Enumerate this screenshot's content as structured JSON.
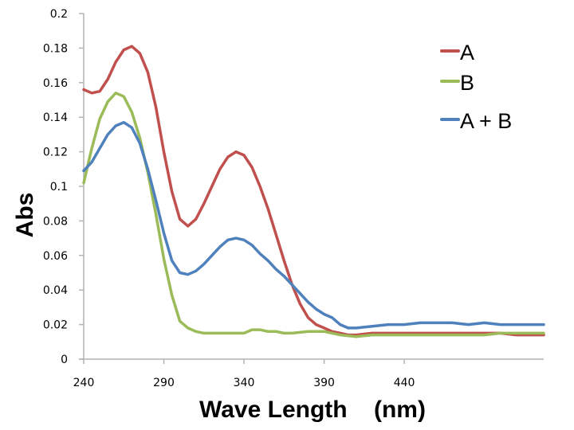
{
  "chart_data": {
    "type": "line",
    "title": "",
    "xlabel": "Wave Length    (nm)",
    "ylabel": "Abs",
    "xlim": [
      240,
      527
    ],
    "ylim": [
      0,
      0.2
    ],
    "x_ticks": [
      240,
      290,
      340,
      390,
      440
    ],
    "x_tick_labels": [
      "240",
      "290",
      "340",
      "390",
      "440"
    ],
    "y_ticks": [
      0,
      0.02,
      0.04,
      0.06,
      0.08,
      0.1,
      0.12,
      0.14,
      0.16,
      0.18,
      0.2
    ],
    "y_tick_labels": [
      "0",
      "0.02",
      "0.04",
      "0.06",
      "0.08",
      "0.1",
      "0.12",
      "0.14",
      "0.16",
      "0.18",
      "0.2"
    ],
    "grid": false,
    "legend_position": "top-right",
    "series": [
      {
        "name": "A",
        "color": "#c0504d",
        "x": [
          240,
          245,
          250,
          255,
          260,
          265,
          270,
          275,
          280,
          285,
          290,
          295,
          300,
          305,
          310,
          315,
          320,
          325,
          330,
          335,
          340,
          345,
          350,
          355,
          360,
          365,
          370,
          375,
          380,
          385,
          390,
          395,
          400,
          405,
          410,
          420,
          430,
          440,
          450,
          460,
          470,
          480,
          490,
          500,
          510,
          520,
          527
        ],
        "y": [
          0.156,
          0.154,
          0.155,
          0.162,
          0.172,
          0.179,
          0.181,
          0.177,
          0.166,
          0.146,
          0.12,
          0.097,
          0.081,
          0.077,
          0.081,
          0.09,
          0.1,
          0.11,
          0.117,
          0.12,
          0.118,
          0.111,
          0.1,
          0.087,
          0.072,
          0.057,
          0.043,
          0.032,
          0.024,
          0.02,
          0.018,
          0.016,
          0.015,
          0.014,
          0.014,
          0.015,
          0.015,
          0.015,
          0.015,
          0.015,
          0.015,
          0.015,
          0.015,
          0.015,
          0.014,
          0.014,
          0.014
        ]
      },
      {
        "name": "B",
        "color": "#9bbb59",
        "x": [
          240,
          245,
          250,
          255,
          260,
          265,
          270,
          275,
          280,
          285,
          290,
          295,
          300,
          305,
          310,
          315,
          320,
          325,
          330,
          335,
          340,
          345,
          350,
          355,
          360,
          365,
          370,
          380,
          390,
          400,
          410,
          420,
          430,
          440,
          450,
          460,
          470,
          480,
          490,
          500,
          510,
          520,
          527
        ],
        "y": [
          0.102,
          0.122,
          0.139,
          0.149,
          0.154,
          0.152,
          0.143,
          0.128,
          0.108,
          0.084,
          0.058,
          0.037,
          0.022,
          0.018,
          0.016,
          0.015,
          0.015,
          0.015,
          0.015,
          0.015,
          0.015,
          0.017,
          0.017,
          0.016,
          0.016,
          0.015,
          0.015,
          0.016,
          0.016,
          0.014,
          0.013,
          0.014,
          0.014,
          0.014,
          0.014,
          0.014,
          0.014,
          0.014,
          0.014,
          0.015,
          0.015,
          0.015,
          0.015
        ]
      },
      {
        "name": "A + B",
        "color": "#4f81bd",
        "x": [
          240,
          245,
          250,
          255,
          260,
          265,
          270,
          275,
          280,
          285,
          290,
          295,
          300,
          305,
          310,
          315,
          320,
          325,
          330,
          335,
          340,
          345,
          350,
          355,
          360,
          365,
          370,
          375,
          380,
          385,
          390,
          395,
          400,
          405,
          410,
          420,
          430,
          440,
          450,
          460,
          470,
          480,
          490,
          500,
          510,
          520,
          527
        ],
        "y": [
          0.109,
          0.114,
          0.122,
          0.13,
          0.135,
          0.137,
          0.134,
          0.125,
          0.11,
          0.092,
          0.073,
          0.057,
          0.05,
          0.049,
          0.051,
          0.055,
          0.06,
          0.065,
          0.069,
          0.07,
          0.069,
          0.066,
          0.061,
          0.057,
          0.052,
          0.048,
          0.043,
          0.038,
          0.033,
          0.029,
          0.026,
          0.024,
          0.02,
          0.018,
          0.018,
          0.019,
          0.02,
          0.02,
          0.021,
          0.021,
          0.021,
          0.02,
          0.021,
          0.02,
          0.02,
          0.02,
          0.02
        ]
      }
    ]
  }
}
